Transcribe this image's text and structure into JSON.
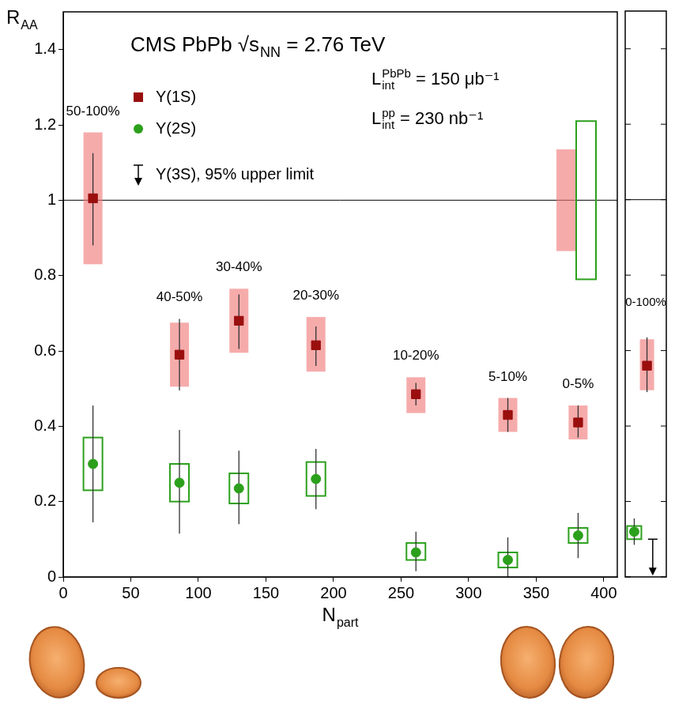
{
  "chart_data": {
    "type": "scatter",
    "title": {
      "text": "CMS PbPb √s",
      "sub": "NN",
      "after": " = 2.76 TeV"
    },
    "x_label": {
      "text": "N",
      "sub": "part"
    },
    "y_label": {
      "text": "R",
      "sub": "AA"
    },
    "xlim": [
      0,
      410
    ],
    "xticks": [
      0,
      50,
      100,
      150,
      200,
      250,
      300,
      350,
      400
    ],
    "ylim": [
      0,
      1.5
    ],
    "yticks": [
      0,
      0.2,
      0.4,
      0.6,
      0.8,
      1,
      1.2,
      1.4
    ],
    "grid": false,
    "legend": "top-left",
    "reference_line": 1,
    "annotations": [
      {
        "text": "L",
        "sub": "int",
        "sup": "PbPb",
        "after": " = 150 μb⁻¹"
      },
      {
        "text": "L",
        "sub": "int",
        "sup": "pp",
        "after": " = 230 nb⁻¹"
      }
    ],
    "x": [
      22,
      86,
      130,
      187,
      261,
      329,
      381
    ],
    "point_labels": [
      "50-100%",
      "40-50%",
      "30-40%",
      "20-30%",
      "10-20%",
      "5-10%",
      "0-5%"
    ],
    "integrated_label": "0-100%",
    "series": [
      {
        "name": "Υ(1S)",
        "color": "#9a0e0e",
        "marker": "square",
        "values": [
          1.005,
          0.59,
          0.68,
          0.615,
          0.485,
          0.43,
          0.41
        ],
        "stat_low": [
          0.88,
          0.495,
          0.605,
          0.56,
          0.455,
          0.385,
          0.37
        ],
        "stat_high": [
          1.125,
          0.685,
          0.75,
          0.665,
          0.515,
          0.475,
          0.455
        ],
        "syst_low": [
          0.83,
          0.505,
          0.595,
          0.545,
          0.435,
          0.385,
          0.365
        ],
        "syst_high": [
          1.18,
          0.675,
          0.765,
          0.69,
          0.53,
          0.475,
          0.455
        ],
        "global_syst": [
          0.865,
          1.135
        ],
        "integrated": {
          "value": 0.56,
          "stat_low": 0.49,
          "stat_high": 0.635,
          "syst_low": 0.495,
          "syst_high": 0.63
        }
      },
      {
        "name": "Υ(2S)",
        "color": "#2ca01c",
        "marker": "circle",
        "values": [
          0.3,
          0.25,
          0.235,
          0.26,
          0.065,
          0.045,
          0.11
        ],
        "stat_low": [
          0.145,
          0.115,
          0.14,
          0.18,
          0.015,
          0.0,
          0.05
        ],
        "stat_high": [
          0.455,
          0.39,
          0.335,
          0.34,
          0.12,
          0.105,
          0.17
        ],
        "syst_low": [
          0.23,
          0.2,
          0.195,
          0.215,
          0.045,
          0.025,
          0.09
        ],
        "syst_high": [
          0.37,
          0.3,
          0.275,
          0.305,
          0.09,
          0.065,
          0.13
        ],
        "global_syst": [
          0.79,
          1.21
        ],
        "integrated": {
          "value": 0.12,
          "stat_low": 0.085,
          "stat_high": 0.155,
          "syst_low": 0.1,
          "syst_high": 0.135
        }
      },
      {
        "name": "Υ(3S), 95% upper limit",
        "color": "#000000",
        "marker": "arrow",
        "values": [
          null,
          null,
          null,
          null,
          null,
          null,
          null
        ],
        "integrated": {
          "upper_limit": 0.1
        }
      }
    ]
  }
}
